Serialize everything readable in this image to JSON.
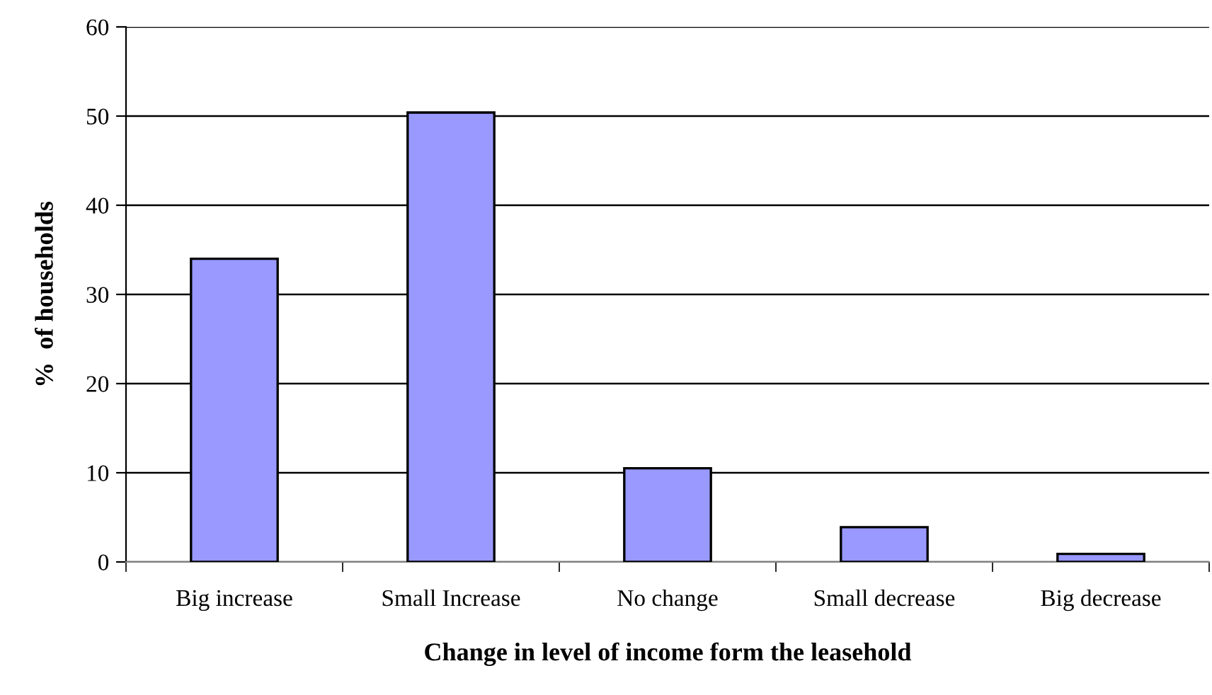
{
  "chart_data": {
    "type": "bar",
    "xlabel": "Change in level of income form the leasehold",
    "ylabel": "%  of households",
    "categories": [
      "Big increase",
      "Small Increase",
      "No change",
      "Small decrease",
      "Big decrease"
    ],
    "values": [
      34,
      50.4,
      10.5,
      3.9,
      0.9
    ],
    "color": "#9999ff",
    "ylim": [
      0,
      60
    ],
    "yticks": [
      0,
      10,
      20,
      30,
      40,
      50,
      60
    ],
    "grid": "y"
  }
}
